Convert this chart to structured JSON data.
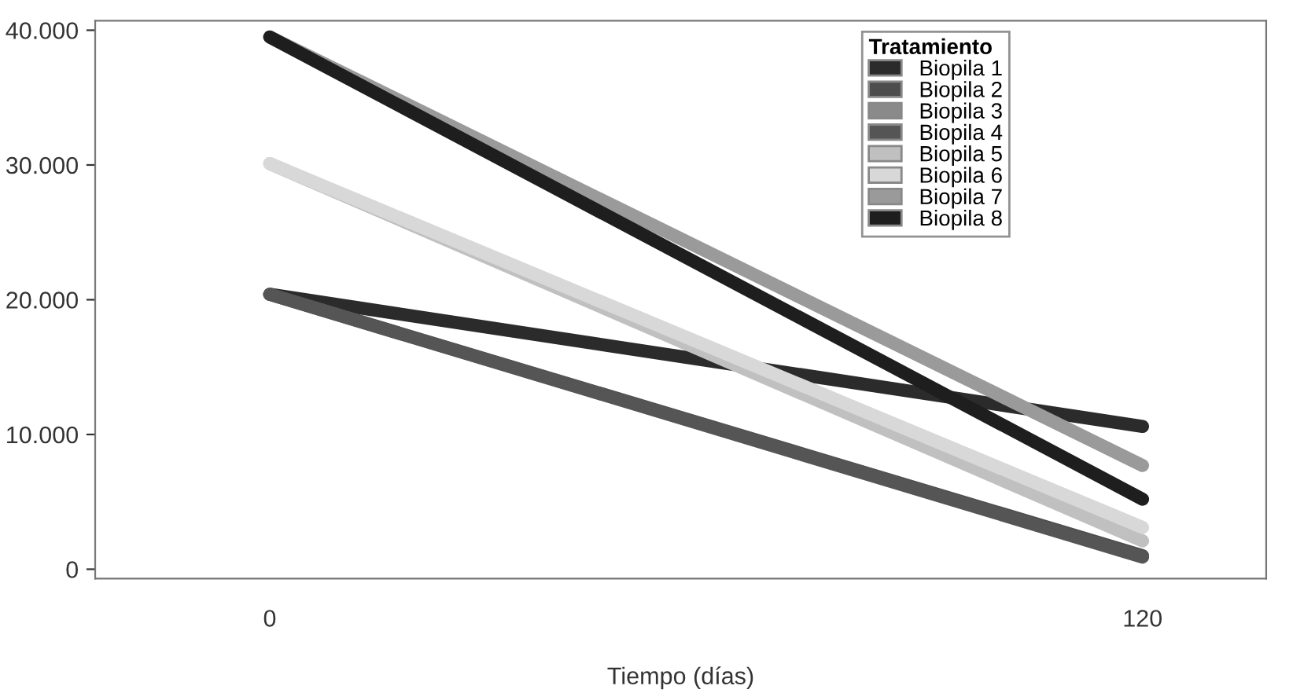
{
  "chart_data": {
    "type": "line",
    "xlabel": "Tiempo (días)",
    "legend_title": "Tratamiento",
    "legend": "top right",
    "grid": false,
    "marker": "none",
    "line_style": "solid",
    "x": [
      0,
      120
    ],
    "xlim": [
      -24,
      137
    ],
    "xticks": [
      0,
      120
    ],
    "ylim": [
      -700,
      40700
    ],
    "yticks": [
      0,
      {
        "value": 10000,
        "label": "10.000"
      },
      {
        "value": 20000,
        "label": "20.000"
      },
      {
        "value": 30000,
        "label": "30.000"
      },
      {
        "value": 40000,
        "label": "40.000"
      }
    ],
    "series": [
      {
        "name": "Biopila 1",
        "color": "#2b2b2b",
        "values": [
          20400,
          10600
        ]
      },
      {
        "name": "Biopila 2",
        "color": "#4d4d4d",
        "values": [
          20400,
          1000
        ]
      },
      {
        "name": "Biopila 3",
        "color": "#8a8a8a",
        "values": [
          null,
          null
        ]
      },
      {
        "name": "Biopila 4",
        "color": "#555555",
        "values": [
          20400,
          900
        ]
      },
      {
        "name": "Biopila 5",
        "color": "#c0c0c0",
        "values": [
          30100,
          2100
        ]
      },
      {
        "name": "Biopila 6",
        "color": "#d8d8d8",
        "values": [
          30100,
          3100
        ]
      },
      {
        "name": "Biopila 7",
        "color": "#9a9a9a",
        "values": [
          39500,
          7700
        ]
      },
      {
        "name": "Biopila 8",
        "color": "#1e1e1e",
        "values": [
          39500,
          5200
        ]
      }
    ]
  }
}
